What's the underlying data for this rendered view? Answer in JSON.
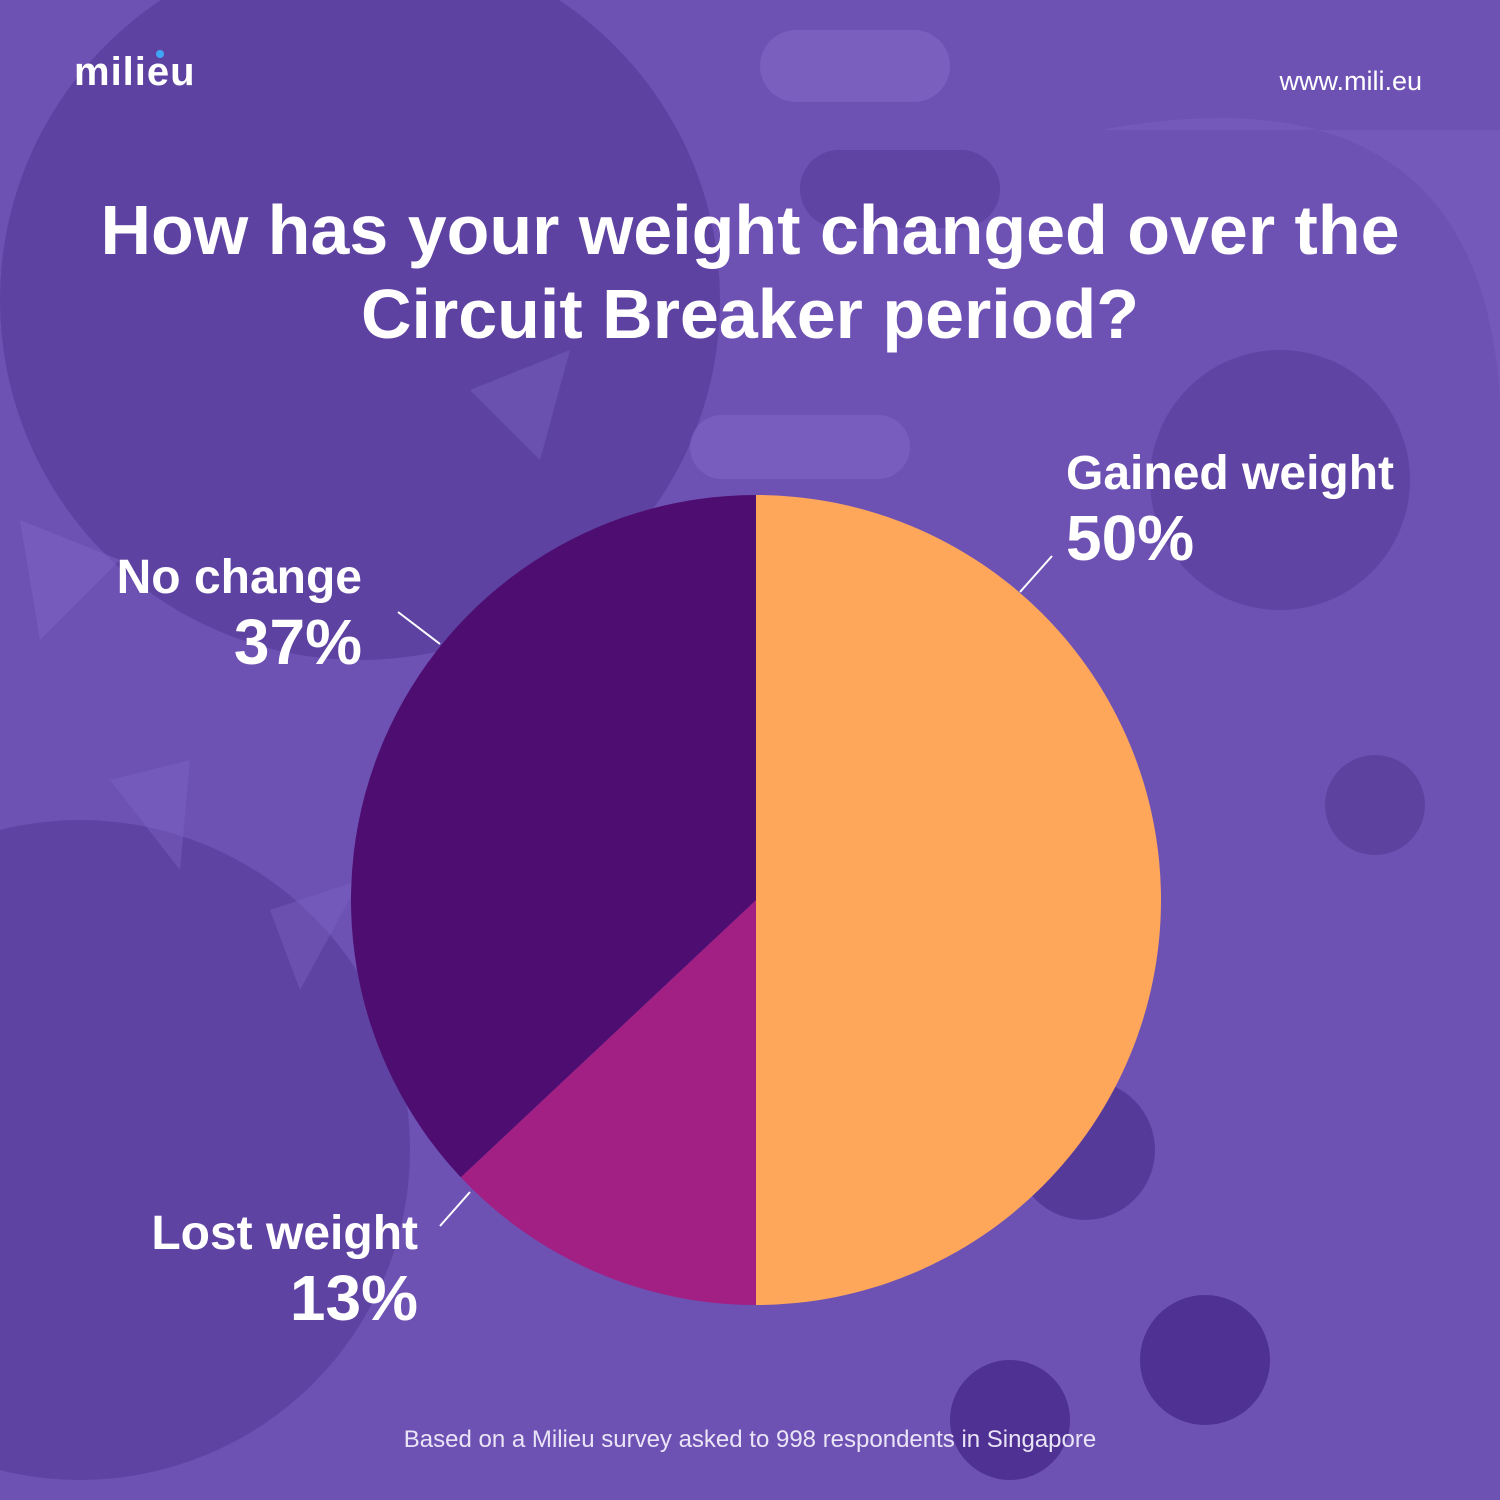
{
  "brand": {
    "logo_text": "milieu",
    "url": "www.mili.eu"
  },
  "title": "How has your weight changed over the Circuit Breaker period?",
  "footnote": "Based on a Milieu survey asked to 998 respondents in Singapore",
  "colors": {
    "background": "#6d52b4",
    "gained": "#fea75a",
    "no_change": "#4e0d70",
    "lost": "#a21f84",
    "leader_line": "#ffffff"
  },
  "chart_data": {
    "type": "pie",
    "title": "How has your weight changed over the Circuit Breaker period?",
    "start_angle": "12 o'clock, clockwise",
    "slices": [
      {
        "label": "Gained weight",
        "value": 50,
        "display": "50%",
        "color": "#fea75a"
      },
      {
        "label": "Lost weight",
        "value": 13,
        "display": "13%",
        "color": "#a21f84"
      },
      {
        "label": "No change",
        "value": 37,
        "display": "37%",
        "color": "#4e0d70"
      }
    ]
  }
}
